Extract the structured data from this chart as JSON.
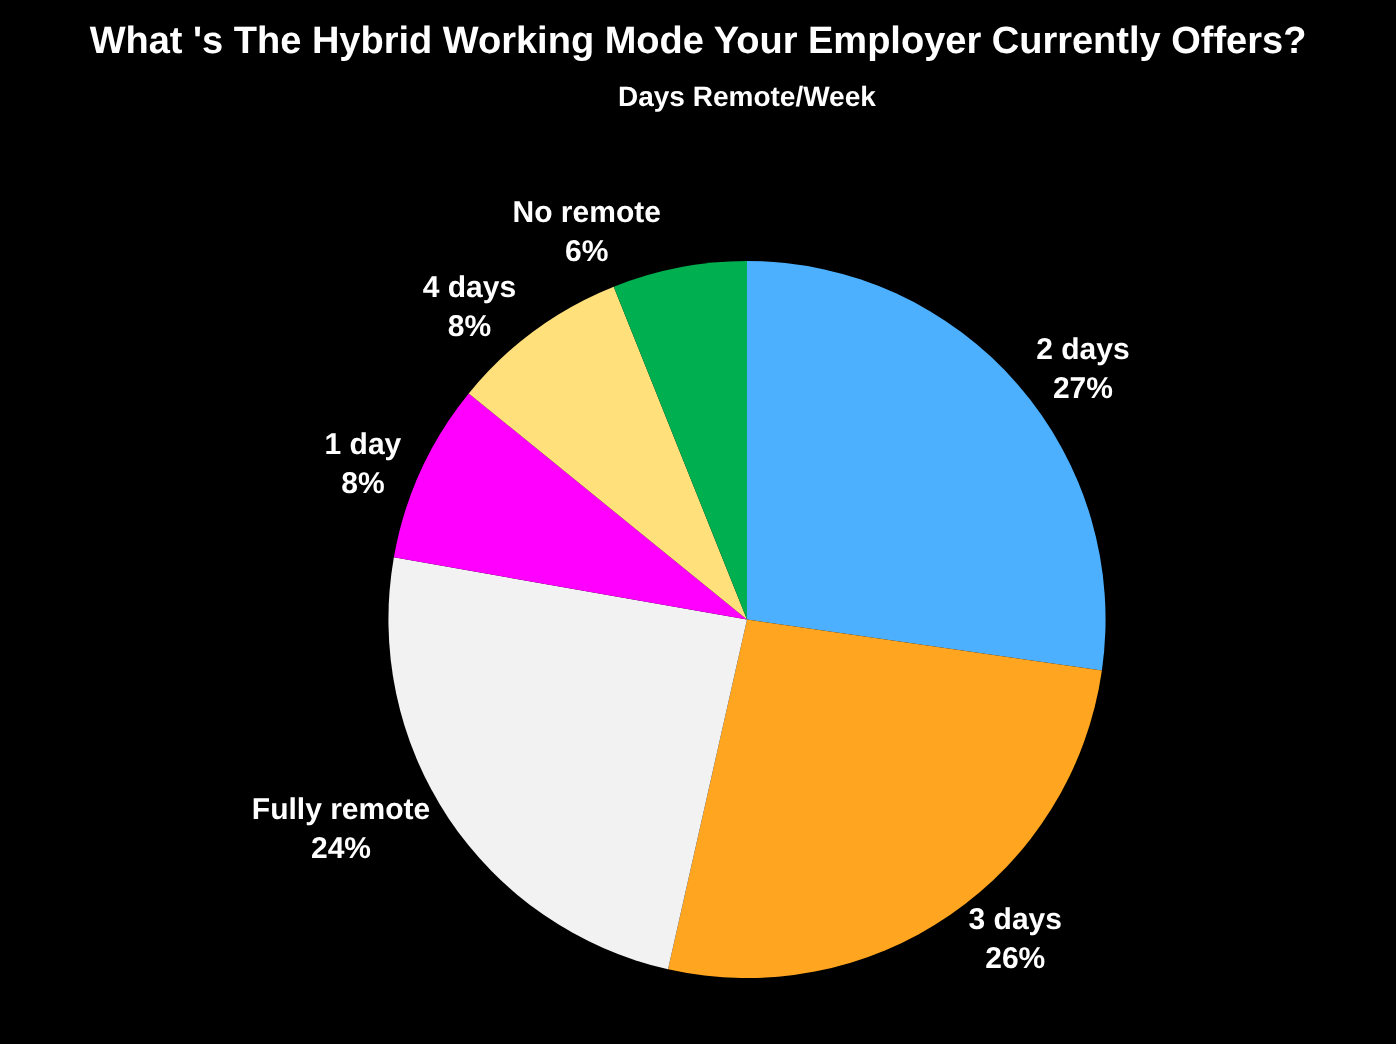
{
  "chart_data": {
    "type": "pie",
    "title": "What 's The Hybrid Working Mode Your Employer Currently Offers?",
    "subtitle": "Days Remote/Week",
    "categories": [
      "2 days",
      "3 days",
      "Fully remote",
      "1 day",
      "4 days",
      "No remote"
    ],
    "values": [
      27,
      26,
      24,
      8,
      8,
      6
    ],
    "value_labels": [
      "27%",
      "26%",
      "24%",
      "8%",
      "8%",
      "6%"
    ],
    "colors": [
      "#4db0ff",
      "#ffa51f",
      "#f2f2f2",
      "#ff00ff",
      "#ffe07a",
      "#00b050"
    ],
    "legend": false
  }
}
